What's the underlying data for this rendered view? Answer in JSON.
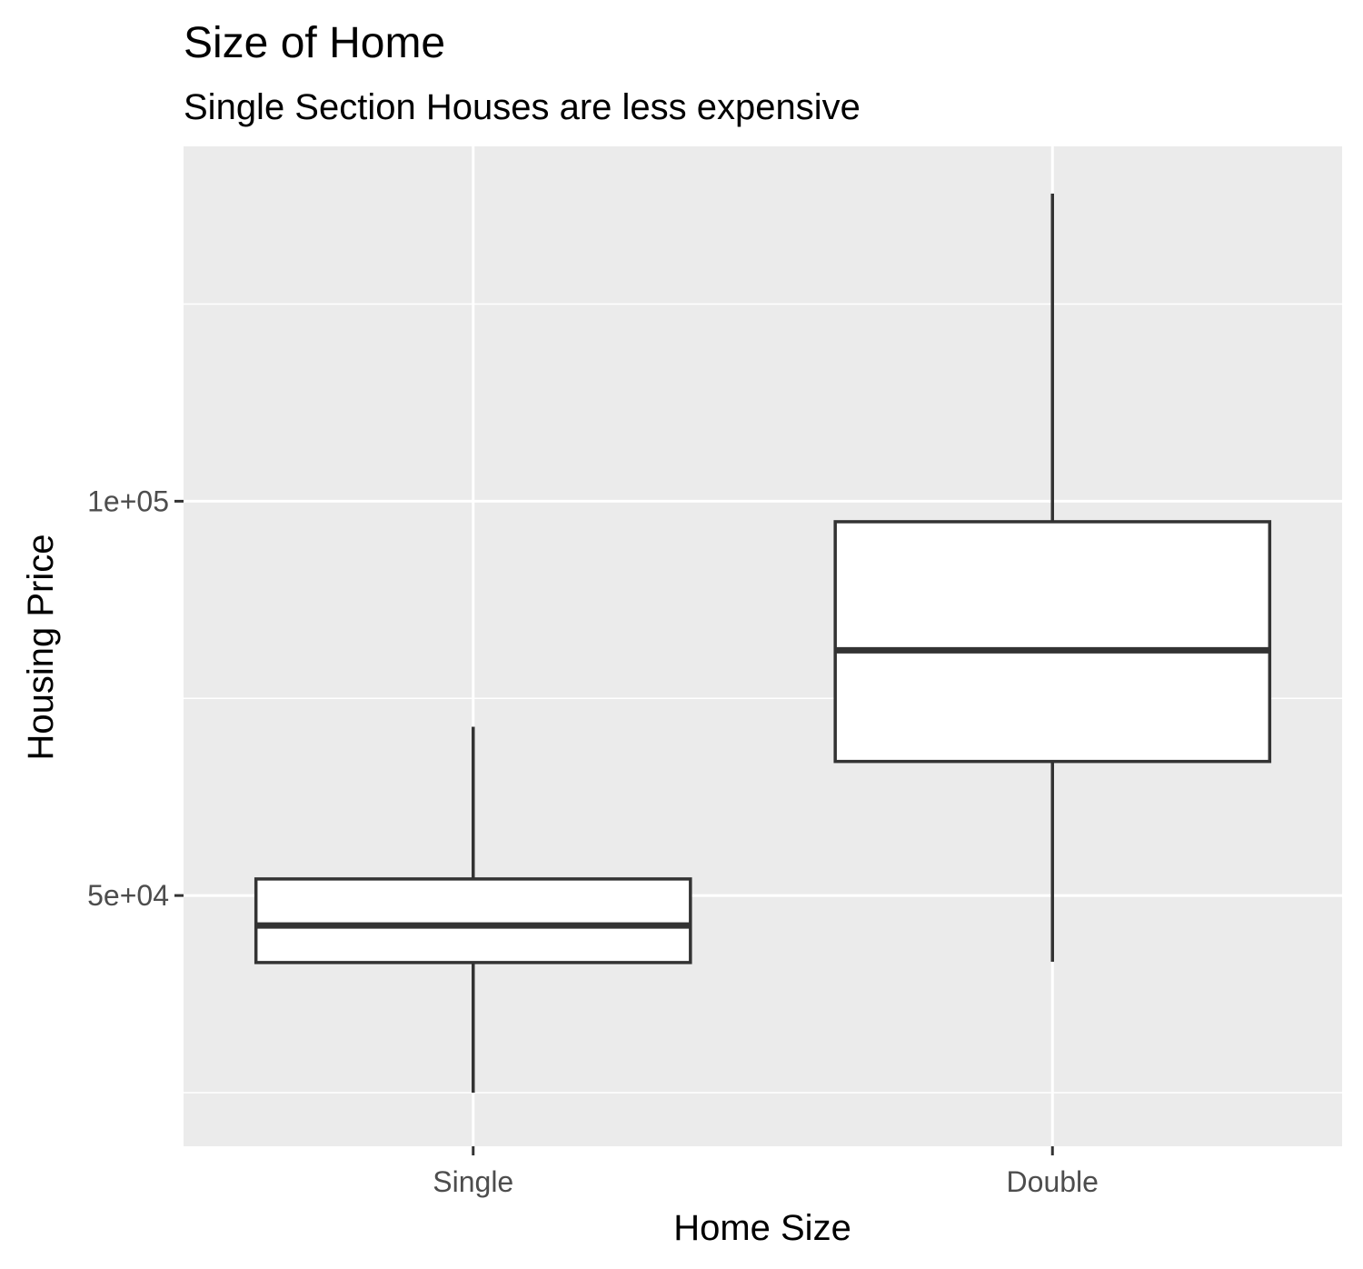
{
  "chart_data": {
    "type": "boxplot",
    "title": "Size of Home",
    "subtitle": "Single Section Houses are less expensive",
    "xlabel": "Home Size",
    "ylabel": "Housing Price",
    "categories": [
      "Single",
      "Double"
    ],
    "boxes": [
      {
        "category": "Single",
        "whisker_low": 25000,
        "q1": 41500,
        "median": 46200,
        "q3": 52100,
        "whisker_high": 71400
      },
      {
        "category": "Double",
        "whisker_low": 41600,
        "q1": 67000,
        "median": 81100,
        "q3": 97400,
        "whisker_high": 139000
      }
    ],
    "y_ticks": [
      {
        "value": 50000,
        "label": "5e+04"
      },
      {
        "value": 100000,
        "label": "1e+05"
      }
    ],
    "y_minor_gridlines": [
      25000,
      75000,
      125000
    ],
    "ylim": [
      18200,
      145000
    ],
    "grid": true,
    "legend": "none"
  },
  "colors": {
    "panel_background": "#ebebeb",
    "gridline": "#ffffff",
    "box_fill": "#ffffff",
    "box_outline": "#333333",
    "tick_text": "#4d4d4d",
    "title_text": "#000000"
  }
}
